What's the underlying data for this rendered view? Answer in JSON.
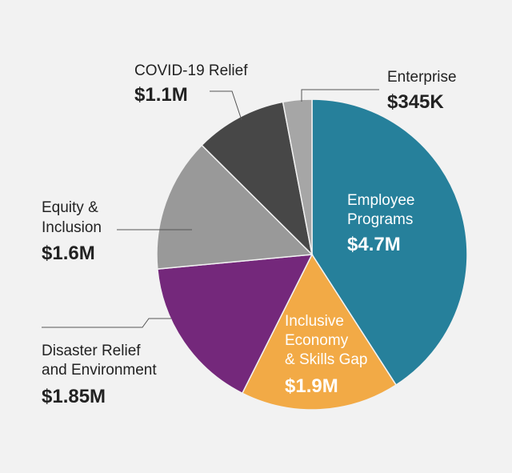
{
  "chart_data": {
    "type": "pie",
    "start_angle_deg": 0,
    "direction": "clockwise",
    "slices": [
      {
        "name": "Employee Programs",
        "name_lines": [
          "Employee",
          "Programs"
        ],
        "value_label": "$4.7M",
        "value": 4.7,
        "color": "#26809b",
        "label_inside": true,
        "label_color": "#ffffff"
      },
      {
        "name": "Inclusive Economy & Skills Gap",
        "name_lines": [
          "Inclusive",
          "Economy",
          "& Skills Gap"
        ],
        "value_label": "$1.9M",
        "value": 1.9,
        "color": "#f2aa46",
        "label_inside": true,
        "label_color": "#ffffff"
      },
      {
        "name": "Disaster Relief and Environment",
        "name_lines": [
          "Disaster Relief",
          "and Environment"
        ],
        "value_label": "$1.85M",
        "value": 1.85,
        "color": "#74287b",
        "label_inside": false,
        "label_color": "#222222"
      },
      {
        "name": "Equity & Inclusion",
        "name_lines": [
          "Equity &",
          "Inclusion"
        ],
        "value_label": "$1.6M",
        "value": 1.6,
        "color": "#999999",
        "label_inside": false,
        "label_color": "#222222"
      },
      {
        "name": "COVID-19 Relief",
        "name_lines": [
          "COVID-19 Relief"
        ],
        "value_label": "$1.1M",
        "value": 1.1,
        "color": "#474747",
        "label_inside": false,
        "label_color": "#222222"
      },
      {
        "name": "Enterprise",
        "name_lines": [
          "Enterprise"
        ],
        "value_label": "$345K",
        "value": 0.345,
        "color": "#a6a6a6",
        "label_inside": false,
        "label_color": "#222222"
      }
    ]
  }
}
